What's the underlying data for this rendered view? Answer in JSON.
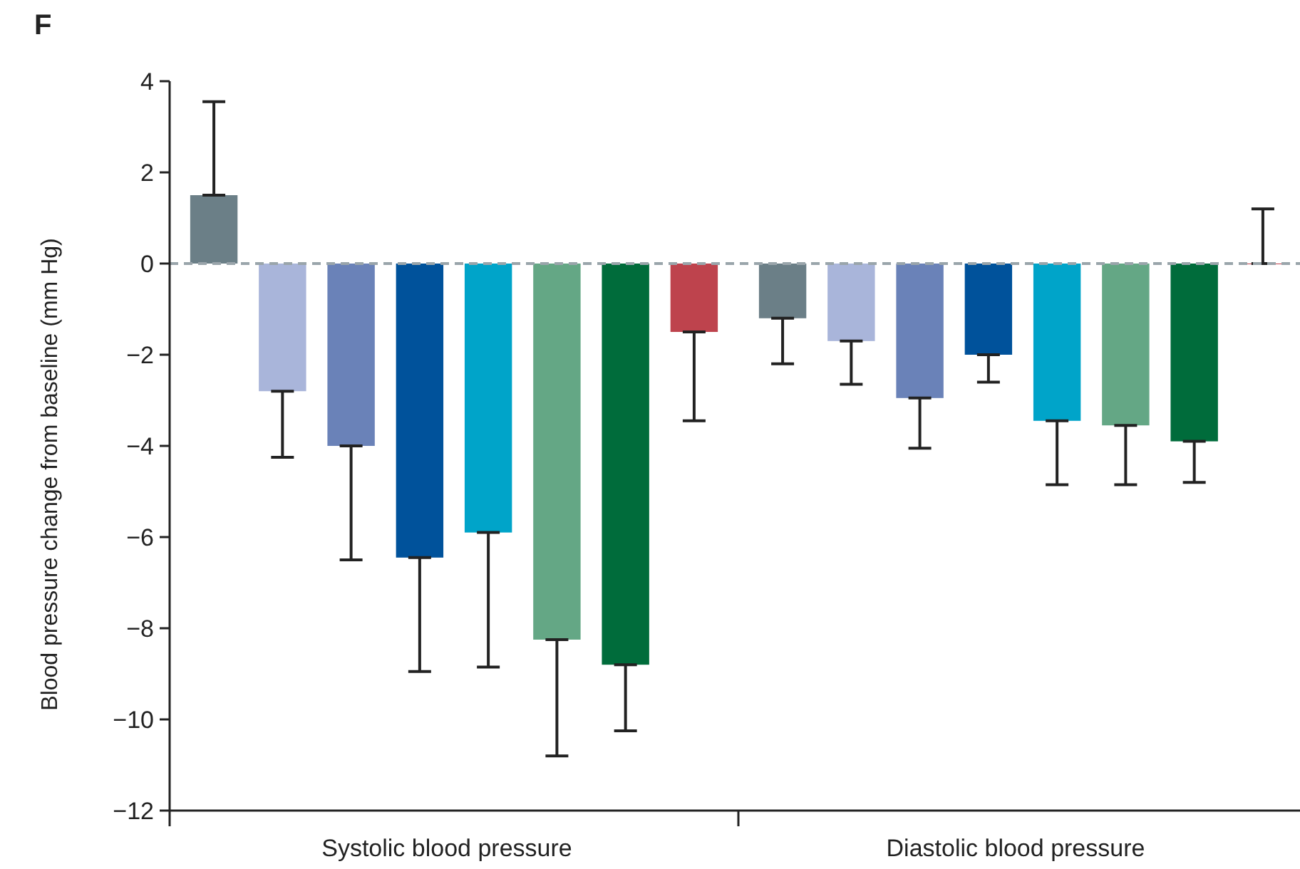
{
  "chart_data": {
    "type": "bar",
    "title": "F",
    "ylabel": "Blood pressure change from baseline (mm Hg)",
    "categories": [
      "Systolic blood pressure",
      "Diastolic blood pressure"
    ],
    "ylim": [
      -12,
      4
    ],
    "yticks": [
      -12,
      -10,
      -8,
      -6,
      -4,
      -2,
      0,
      2,
      4
    ],
    "grid": false,
    "ref_lines": [
      {
        "axis": "y",
        "value": 0,
        "color": "#9aa5ab",
        "line_style": "dashed"
      }
    ],
    "series": [
      {
        "color": "#6b7f87",
        "values": [
          1.5,
          -1.2
        ],
        "errors": [
          [
            1.5,
            3.55
          ],
          [
            -2.2,
            -1.2
          ]
        ]
      },
      {
        "color": "#a9b5da",
        "values": [
          -2.8,
          -1.7
        ],
        "errors": [
          [
            -4.25,
            -2.8
          ],
          [
            -2.65,
            -1.7
          ]
        ]
      },
      {
        "color": "#6a82b8",
        "values": [
          -4.0,
          -2.95
        ],
        "errors": [
          [
            -6.5,
            -4.0
          ],
          [
            -4.05,
            -2.95
          ]
        ]
      },
      {
        "color": "#00529b",
        "values": [
          -6.45,
          -2.0
        ],
        "errors": [
          [
            -8.95,
            -6.45
          ],
          [
            -2.6,
            -2.0
          ]
        ]
      },
      {
        "color": "#00a4c9",
        "values": [
          -5.9,
          -3.45
        ],
        "errors": [
          [
            -8.85,
            -5.9
          ],
          [
            -4.85,
            -3.45
          ]
        ]
      },
      {
        "color": "#64a785",
        "values": [
          -8.25,
          -3.55
        ],
        "errors": [
          [
            -10.8,
            -8.25
          ],
          [
            -4.85,
            -3.55
          ]
        ]
      },
      {
        "color": "#006c3b",
        "values": [
          -8.8,
          -3.9
        ],
        "errors": [
          [
            -10.25,
            -8.8
          ],
          [
            -4.8,
            -3.9
          ]
        ]
      },
      {
        "color": "#be434d",
        "values": [
          -1.5,
          0.0
        ],
        "errors": [
          [
            -3.45,
            -1.5
          ],
          [
            0.0,
            1.2
          ]
        ]
      }
    ]
  }
}
